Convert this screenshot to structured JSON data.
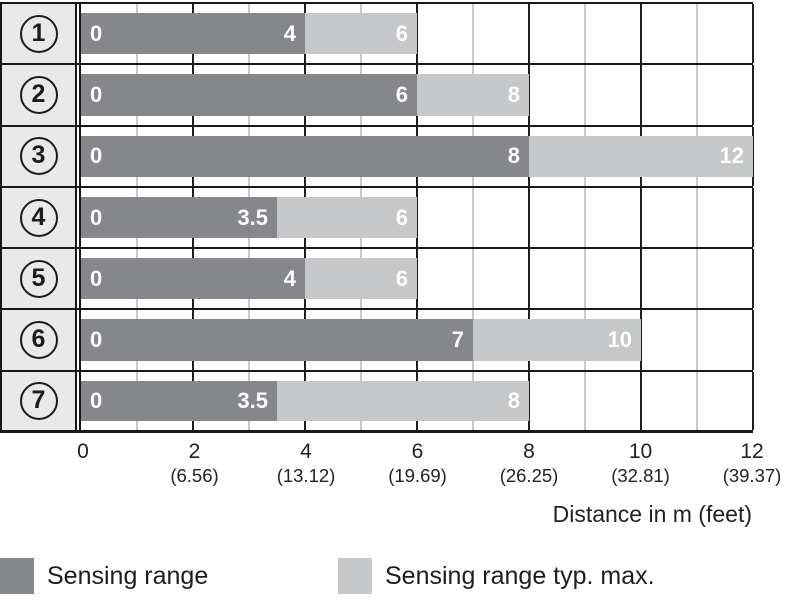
{
  "chart_data": {
    "type": "bar",
    "orientation": "horizontal-stacked",
    "x_max": 12,
    "x_major_step": 2,
    "x_minor_step": 1,
    "xlabel": "Distance in m (feet)",
    "grid": "on",
    "rows": [
      {
        "label": "1",
        "start_text": "0",
        "dark_value": 4,
        "dark_text": "4",
        "light_value": 6,
        "light_text": "6"
      },
      {
        "label": "2",
        "start_text": "0",
        "dark_value": 6,
        "dark_text": "6",
        "light_value": 8,
        "light_text": "8"
      },
      {
        "label": "3",
        "start_text": "0",
        "dark_value": 8,
        "dark_text": "8",
        "light_value": 12,
        "light_text": "12"
      },
      {
        "label": "4",
        "start_text": "0",
        "dark_value": 3.5,
        "dark_text": "3.5",
        "light_value": 6,
        "light_text": "6"
      },
      {
        "label": "5",
        "start_text": "0",
        "dark_value": 4,
        "dark_text": "4",
        "light_value": 6,
        "light_text": "6"
      },
      {
        "label": "6",
        "start_text": "0",
        "dark_value": 7,
        "dark_text": "7",
        "light_value": 10,
        "light_text": "10"
      },
      {
        "label": "7",
        "start_text": "0",
        "dark_value": 3.5,
        "dark_text": "3.5",
        "light_value": 8,
        "light_text": "8"
      }
    ],
    "ticks": [
      {
        "value": 0,
        "m": "0",
        "feet": ""
      },
      {
        "value": 2,
        "m": "2",
        "feet": "(6.56)"
      },
      {
        "value": 4,
        "m": "4",
        "feet": "(13.12)"
      },
      {
        "value": 6,
        "m": "6",
        "feet": "(19.69)"
      },
      {
        "value": 8,
        "m": "8",
        "feet": "(26.25)"
      },
      {
        "value": 10,
        "m": "10",
        "feet": "(32.81)"
      },
      {
        "value": 12,
        "m": "12",
        "feet": "(39.37)"
      }
    ],
    "legend": [
      {
        "label": "Sensing range",
        "color": "#86878b"
      },
      {
        "label": "Sensing range typ. max.",
        "color": "#c6c7c9"
      }
    ],
    "legend_position": "bottom"
  },
  "colors": {
    "bar_dark": "#86878b",
    "bar_light": "#c6c7c9",
    "row_label_bg": "#e9e9ea",
    "grid_major": "#1f1f1f",
    "grid_minor": "#c9c9c9",
    "border": "#181818",
    "bar_value_text": "#ffffff",
    "text": "#222222"
  }
}
